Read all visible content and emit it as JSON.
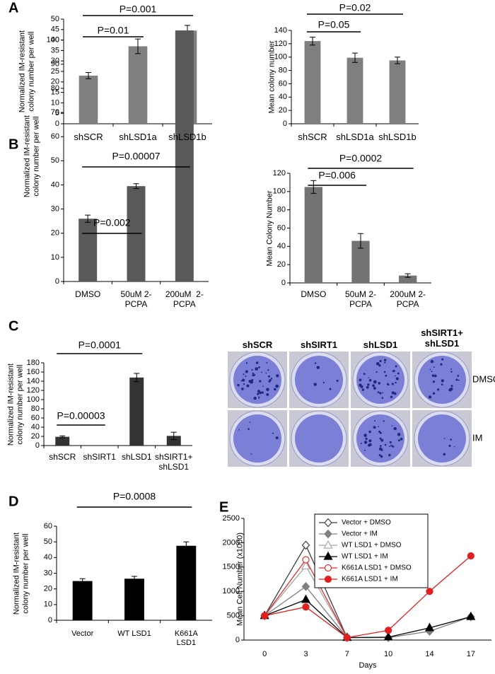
{
  "chart_data": [
    {
      "type": "bar",
      "panel": "A",
      "ylabel": "Normalized IM-resistant\ncolony number per well",
      "categories": [
        "shSCR",
        "shLSD1a",
        "shLSD1b"
      ],
      "values": [
        23,
        37,
        44.5
      ],
      "errors": [
        1.5,
        3.5,
        2.5
      ],
      "color": "#7f7f7f",
      "ylim": [
        0,
        50
      ],
      "yticks": [
        0,
        5,
        10,
        15,
        20,
        25,
        30,
        35,
        40,
        45,
        50
      ],
      "annotations": [
        "P=0.01",
        "P=0.001"
      ]
    },
    {
      "type": "bar",
      "ylabel": "Mean colony number",
      "categories": [
        "shSCR",
        "shLSD1a",
        "shLSD1b"
      ],
      "values": [
        124,
        99,
        95
      ],
      "errors": [
        6,
        7,
        5
      ],
      "color": "#7f7f7f",
      "ylim": [
        0,
        140
      ],
      "yticks": [
        0,
        20,
        40,
        60,
        80,
        100,
        120,
        140
      ],
      "annotations": [
        "P=0.05",
        "P=0.02"
      ]
    },
    {
      "type": "bar",
      "panel": "B",
      "ylabel": "Normalized IM-resistant\ncolony number per well",
      "categories": [
        "DMSO",
        "50uM 2-\nPCPA",
        "200uM  2-\nPCPA"
      ],
      "values": [
        26,
        39.5,
        104
      ],
      "errors": [
        1.5,
        1,
        null
      ],
      "color": "#595959",
      "ylim": [
        0,
        104
      ],
      "yticks": [
        0,
        10,
        20,
        30,
        40,
        50,
        60,
        70,
        80,
        90,
        100
      ],
      "annotations": [
        "P=0.002",
        "P=0.00007"
      ]
    },
    {
      "type": "bar",
      "ylabel": "Mean Colony Number",
      "categories": [
        "DMSO",
        "50uM 2-\nPCPA",
        "200uM 2-\nPCPA"
      ],
      "values": [
        105,
        46,
        8
      ],
      "errors": [
        7,
        8,
        2
      ],
      "color": "#737373",
      "ylim": [
        0,
        120
      ],
      "yticks": [
        0,
        20,
        40,
        60,
        80,
        100,
        120
      ],
      "annotations": [
        "P=0.006",
        "P=0.0002"
      ]
    },
    {
      "type": "bar",
      "panel": "C",
      "ylabel": "Normalized IM-resistant\ncolony number per well",
      "categories": [
        "shSCR",
        "shSIRT1",
        "shLSD1",
        "shSIRT1+\nshLSD1"
      ],
      "values": [
        19,
        0,
        148,
        21
      ],
      "errors": [
        2,
        null,
        9,
        8
      ],
      "color": "#333333",
      "ylim": [
        0,
        180
      ],
      "yticks": [
        0,
        20,
        40,
        60,
        80,
        100,
        120,
        140,
        160,
        180
      ],
      "annotations": [
        "P=0.00003",
        "P=0.0001"
      ]
    },
    {
      "type": "bar",
      "panel": "D",
      "ylabel": "Normalized IM-resistant\ncolony number per well",
      "categories": [
        "Vector",
        "WT LSD1",
        "K661A\nLSD1"
      ],
      "values": [
        25,
        26.5,
        47.5
      ],
      "errors": [
        1.5,
        1.5,
        2.5
      ],
      "color": "#000000",
      "ylim": [
        0,
        60
      ],
      "yticks": [
        0,
        10,
        20,
        30,
        40,
        50,
        60
      ],
      "annotations": [
        "P=0.0008"
      ]
    },
    {
      "type": "line",
      "panel": "E",
      "ylabel": "Mean Cell Number (x1000)",
      "xlabel": "Days",
      "categories": [
        "0",
        "3",
        "7",
        "10",
        "14",
        "17"
      ],
      "ylim": [
        0,
        2500
      ],
      "yticks": [
        0,
        500,
        1000,
        1500,
        2000,
        2500
      ],
      "legend": "top-left",
      "series": [
        {
          "name": "Vector + DMSO",
          "color": "#404040",
          "marker": "diamond",
          "filled": false,
          "values": [
            500,
            1950,
            50,
            null,
            null,
            null
          ]
        },
        {
          "name": "Vector + IM",
          "color": "#808080",
          "marker": "diamond",
          "filled": true,
          "values": [
            500,
            1100,
            50,
            50,
            180,
            480
          ]
        },
        {
          "name": "WT LSD1 + DMSO",
          "color": "#a6a6a6",
          "marker": "triangle",
          "filled": false,
          "values": [
            500,
            1520,
            50,
            null,
            null,
            null
          ]
        },
        {
          "name": "WT LSD1 + IM",
          "color": "#000000",
          "marker": "triangle",
          "filled": true,
          "values": [
            500,
            830,
            50,
            60,
            250,
            480
          ]
        },
        {
          "name": "K661A LSD1 + DMSO",
          "color": "#e03030",
          "marker": "circle",
          "filled": false,
          "values": [
            500,
            1650,
            50,
            null,
            null,
            null
          ]
        },
        {
          "name": "K661A LSD1 + IM",
          "color": "#e02020",
          "marker": "circle",
          "filled": true,
          "values": [
            500,
            680,
            50,
            200,
            1000,
            1730
          ]
        }
      ]
    }
  ],
  "image_panel": {
    "columns": [
      "shSCR",
      "shSIRT1",
      "shLSD1",
      "shSIRT1+\nshLSD1"
    ],
    "rows": [
      "DMSO",
      "IM"
    ]
  }
}
